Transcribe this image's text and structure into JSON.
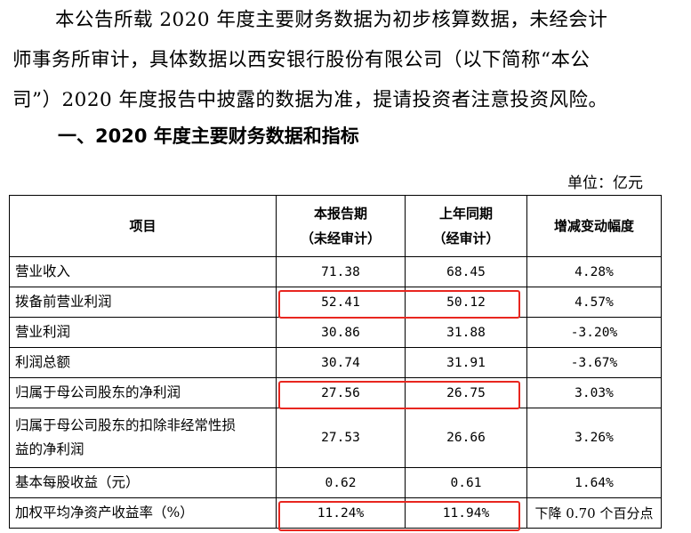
{
  "intro": {
    "line1": "本公告所载 2020 年度主要财务数据为初步核算数据，未经会计",
    "line2": "师事务所审计，具体数据以西安银行股份有限公司（以下简称“本公",
    "line3": "司”）2020 年度报告中披露的数据为准，提请投资者注意投资风险。"
  },
  "section_title": "一、2020 年度主要财务数据和指标",
  "unit_label": "单位：亿元",
  "table": {
    "headers": {
      "item": "项目",
      "current_line1": "本报告期",
      "current_line2": "（未经审计）",
      "prior_line1": "上年同期",
      "prior_line2": "（经审计）",
      "change": "增减变动幅度"
    },
    "rows": [
      {
        "label": "营业收入",
        "current": "71.38",
        "prior": "68.45",
        "change": "4.28%"
      },
      {
        "label": "拨备前营业利润",
        "current": "52.41",
        "prior": "50.12",
        "change": "4.57%"
      },
      {
        "label": "营业利润",
        "current": "30.86",
        "prior": "31.88",
        "change": "-3.20%"
      },
      {
        "label": "利润总额",
        "current": "30.74",
        "prior": "31.91",
        "change": "-3.67%"
      },
      {
        "label": "归属于母公司股东的净利润",
        "current": "27.56",
        "prior": "26.75",
        "change": "3.03%"
      },
      {
        "label_line1": "归属于母公司股东的扣除非经常性损",
        "label_line2": "益的净利润",
        "current": "27.53",
        "prior": "26.66",
        "change": "3.26%"
      },
      {
        "label": "基本每股收益（元）",
        "current": "0.62",
        "prior": "0.61",
        "change": "1.64%"
      },
      {
        "label": "加权平均净资产收益率（%）",
        "current": "11.24%",
        "prior": "11.94%",
        "change": "下降 0.70 个百分点"
      }
    ]
  },
  "highlight_color": "#e8261f"
}
